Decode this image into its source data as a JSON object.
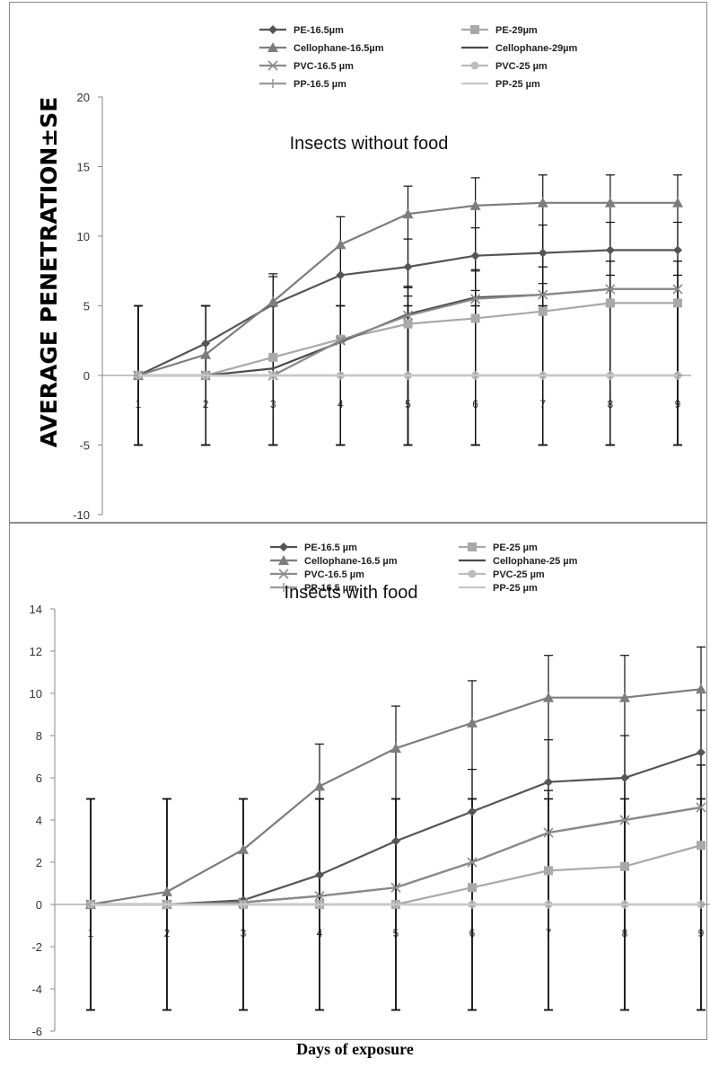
{
  "figure": {
    "x_axis_title": "Days of exposure"
  },
  "chart_data": [
    {
      "type": "line",
      "title": "Insects without food",
      "ylabel": "AVERAGE PENETRATION±SE",
      "xlabel": "",
      "x": [
        1,
        2,
        3,
        4,
        5,
        6,
        7,
        8,
        9
      ],
      "x_tick_labels": [
        "1",
        "2",
        "3",
        "4",
        "5",
        "6",
        "7",
        "8",
        "9"
      ],
      "ylim": [
        -10,
        20
      ],
      "y_ticks": [
        -10,
        -5,
        0,
        5,
        10,
        15,
        20
      ],
      "grid": false,
      "legend_position": "top",
      "series": [
        {
          "name": "PE-16.5µm",
          "marker": "diamond",
          "color": "#555555",
          "values": [
            0,
            2.3,
            5.1,
            7.2,
            7.8,
            8.6,
            8.8,
            9.0,
            9.0
          ]
        },
        {
          "name": "PE-29µm",
          "marker": "square",
          "color": "#a9a9a9",
          "values": [
            0,
            0,
            1.3,
            2.6,
            3.7,
            4.1,
            4.6,
            5.2,
            5.2
          ]
        },
        {
          "name": "Cellophane-16.5µm",
          "marker": "triangle",
          "color": "#7d7d7d",
          "values": [
            0,
            1.5,
            5.3,
            9.4,
            11.6,
            12.2,
            12.4,
            12.4,
            12.4
          ]
        },
        {
          "name": "Cellophane-29µm",
          "marker": "none",
          "color": "#4a4a4a",
          "values": [
            0,
            0,
            0.5,
            2.4,
            4.4,
            5.6,
            5.8,
            6.2,
            6.2
          ]
        },
        {
          "name": "PVC-16.5 µm",
          "marker": "x",
          "color": "#8a8a8a",
          "values": [
            0,
            0,
            0,
            2.5,
            4.3,
            5.5,
            5.8,
            6.2,
            6.2
          ]
        },
        {
          "name": "PVC-25 µm",
          "marker": "circle",
          "color": "#bdbdbd",
          "values": [
            0,
            0,
            0,
            0,
            0,
            0,
            0,
            0,
            0
          ]
        },
        {
          "name": "PP-16.5 µm",
          "marker": "plus",
          "color": "#9a9a9a",
          "values": [
            0,
            0,
            0,
            0,
            0,
            0,
            0,
            0,
            0
          ]
        },
        {
          "name": "PP-25 µm",
          "marker": "none",
          "color": "#c8c8c8",
          "values": [
            0,
            0,
            0,
            0,
            0,
            0,
            0,
            0,
            0
          ]
        }
      ]
    },
    {
      "type": "line",
      "title": "Insects with food",
      "ylabel": "",
      "xlabel": "",
      "x": [
        1,
        2,
        3,
        4,
        5,
        6,
        7,
        8,
        9
      ],
      "x_tick_labels": [
        "1",
        "2",
        "3",
        "4",
        "5",
        "6",
        "7",
        "8",
        "9"
      ],
      "ylim": [
        -6,
        14
      ],
      "y_ticks": [
        -6,
        -4,
        -2,
        0,
        2,
        4,
        6,
        8,
        10,
        12,
        14
      ],
      "grid": false,
      "legend_position": "top",
      "series": [
        {
          "name": "PE-16.5 µm",
          "marker": "diamond",
          "color": "#555555",
          "values": [
            0,
            0,
            0.2,
            1.4,
            3.0,
            4.4,
            5.8,
            6.0,
            7.2
          ]
        },
        {
          "name": "PE-25 µm",
          "marker": "square",
          "color": "#a9a9a9",
          "values": [
            0,
            0,
            0,
            0,
            0,
            0.8,
            1.6,
            1.8,
            2.8
          ]
        },
        {
          "name": "Cellophane-16.5 µm",
          "marker": "triangle",
          "color": "#7d7d7d",
          "values": [
            0,
            0.6,
            2.6,
            5.6,
            7.4,
            8.6,
            9.8,
            9.8,
            10.2
          ]
        },
        {
          "name": "Cellophane-25 µm",
          "marker": "none",
          "color": "#4a4a4a",
          "values": [
            0,
            0,
            0.1,
            0.4,
            0.8,
            2.0,
            3.4,
            4.0,
            4.6
          ]
        },
        {
          "name": "PVC-16.5 µm",
          "marker": "x",
          "color": "#8a8a8a",
          "values": [
            0,
            0,
            0.1,
            0.4,
            0.8,
            2.0,
            3.4,
            4.0,
            4.6
          ]
        },
        {
          "name": "PVC-25 µm",
          "marker": "circle",
          "color": "#bdbdbd",
          "values": [
            0,
            0,
            0,
            0,
            0,
            0,
            0,
            0,
            0
          ]
        },
        {
          "name": "PP-16.5 µm",
          "marker": "plus",
          "color": "#9a9a9a",
          "values": [
            0,
            0,
            0,
            0,
            0,
            0,
            0,
            0,
            0
          ]
        },
        {
          "name": "PP-25 µm",
          "marker": "none",
          "color": "#c8c8c8",
          "values": [
            0,
            0,
            0,
            0,
            0,
            0,
            0,
            0,
            0
          ]
        }
      ]
    }
  ]
}
